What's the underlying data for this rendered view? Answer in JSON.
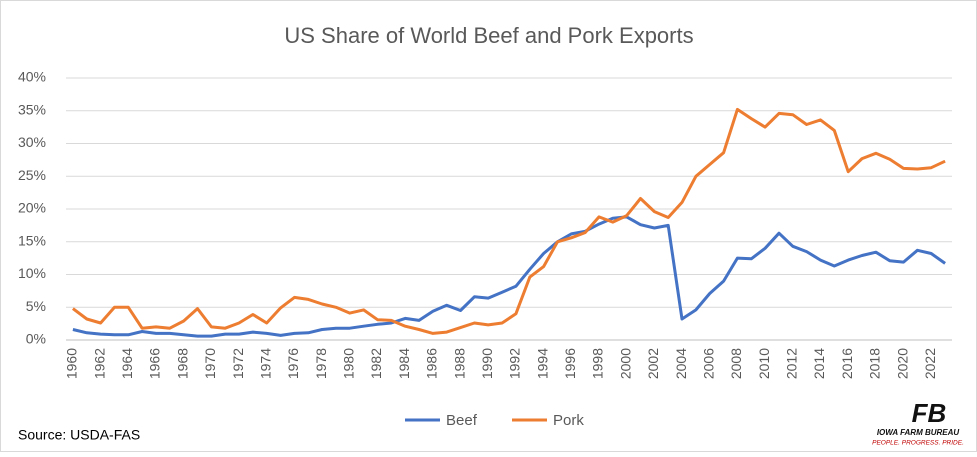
{
  "chart_data": {
    "type": "line",
    "title": "US Share of World Beef and Pork Exports",
    "categories": [
      "1960",
      null,
      "1962",
      null,
      "1964",
      null,
      "1966",
      null,
      "1968",
      null,
      "1970",
      null,
      "1972",
      null,
      "1974",
      null,
      "1976",
      null,
      "1978",
      null,
      "1980",
      null,
      "1982",
      null,
      "1984",
      null,
      "1986",
      null,
      "1988",
      null,
      "1990",
      null,
      "1992",
      null,
      "1994",
      null,
      "1996",
      null,
      "1998",
      null,
      "2000",
      null,
      "2002",
      null,
      "2004",
      null,
      "2006",
      null,
      "2008",
      null,
      "2010",
      null,
      "2012",
      null,
      "2014",
      null,
      "2016",
      null,
      "2018",
      null,
      "2020",
      null,
      "2022",
      null
    ],
    "series": [
      {
        "name": "Beef",
        "color": "#4472c4",
        "values": [
          1.6,
          1.1,
          0.9,
          0.8,
          0.8,
          1.3,
          1.0,
          1.0,
          0.8,
          0.6,
          0.6,
          0.9,
          0.9,
          1.2,
          1.0,
          0.7,
          1.0,
          1.1,
          1.6,
          1.8,
          1.8,
          2.1,
          2.4,
          2.6,
          3.3,
          3.0,
          4.4,
          5.3,
          4.5,
          6.6,
          6.4,
          7.3,
          8.2,
          10.8,
          13.2,
          15.0,
          16.2,
          16.6,
          17.7,
          18.6,
          18.8,
          17.6,
          17.1,
          17.5,
          3.2,
          4.6,
          7.1,
          9.0,
          12.5,
          12.4,
          14.0,
          16.3,
          14.3,
          13.5,
          12.2,
          11.3,
          12.2,
          12.9,
          13.4,
          12.1,
          11.9,
          13.7,
          13.2,
          11.7
        ]
      },
      {
        "name": "Pork",
        "color": "#ed7d31",
        "values": [
          4.8,
          3.2,
          2.6,
          5.0,
          5.0,
          1.8,
          2.0,
          1.8,
          2.9,
          4.8,
          2.0,
          1.8,
          2.6,
          3.9,
          2.6,
          4.9,
          6.5,
          6.2,
          5.5,
          5.0,
          4.1,
          4.6,
          3.1,
          3.0,
          2.1,
          1.6,
          1.0,
          1.2,
          1.9,
          2.6,
          2.3,
          2.6,
          4.0,
          9.6,
          11.2,
          15.0,
          15.6,
          16.4,
          18.8,
          18.0,
          19.0,
          21.6,
          19.6,
          18.7,
          21.0,
          25.0,
          26.8,
          28.6,
          35.2,
          33.8,
          32.5,
          34.6,
          34.4,
          32.9,
          33.6,
          32.0,
          25.7,
          27.7,
          28.5,
          27.6,
          26.2,
          26.1,
          26.3,
          27.3
        ]
      }
    ],
    "ylim": [
      0,
      40
    ],
    "yticks": [
      {
        "value": 0,
        "label": "0%"
      },
      {
        "value": 5,
        "label": "5%"
      },
      {
        "value": 10,
        "label": "10%"
      },
      {
        "value": 15,
        "label": "15%"
      },
      {
        "value": 20,
        "label": "20%"
      },
      {
        "value": 25,
        "label": "25%"
      },
      {
        "value": 30,
        "label": "30%"
      },
      {
        "value": 35,
        "label": "35%"
      },
      {
        "value": 40,
        "label": "40%"
      }
    ],
    "grid": true,
    "legend": "bottom",
    "source": "Source: USDA-FAS"
  },
  "logo": {
    "mark": "FB",
    "name": "IOWA FARM BUREAU",
    "tagline": "PEOPLE. PROGRESS. PRIDE."
  }
}
